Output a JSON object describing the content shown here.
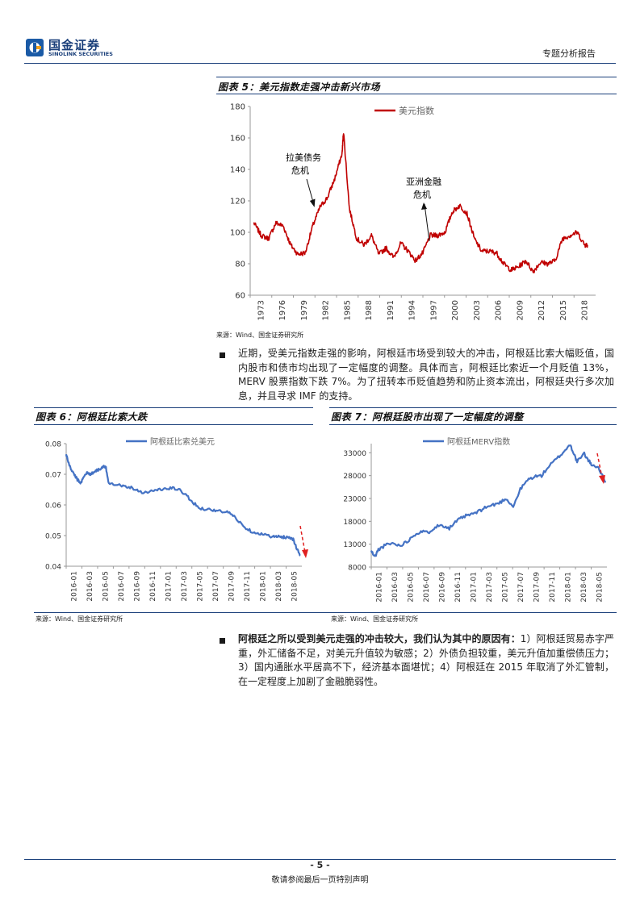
{
  "header": {
    "logo_cn": "国金证券",
    "logo_en": "SINOLINK SECURITIES",
    "report_type": "专题分析报告"
  },
  "fig5": {
    "title": "图表 5：美元指数走强冲击新兴市场",
    "source": "来源：Wind、国金证券研究所",
    "annotations": [
      "拉美债务",
      "危机",
      "亚洲金融",
      "危机"
    ]
  },
  "para1": "近期，受美元指数走强的影响，阿根廷市场受到较大的冲击，阿根廷比索大幅贬值，国内股市和债市均出现了一定幅度的调整。具体而言，阿根廷比索近一个月贬值 13%，MERV 股票指数下跌 7%。为了扭转本币贬值趋势和防止资本流出，阿根廷央行多次加息，并且寻求 IMF 的支持。",
  "fig6": {
    "title": "图表 6：阿根廷比索大跌",
    "source": "来源：Wind、国金证券研究所"
  },
  "fig7": {
    "title": "图表 7：阿根廷股市出现了一定幅度的调整"
  },
  "para2": {
    "bold": "阿根廷之所以受到美元走强的冲击较大，我们认为其中的原因有：",
    "text": "1）阿根廷贸易赤字严重，外汇储备不足，对美元升值较为敏感；2）外债负担较重，美元升值加重偿债压力；3）国内通胀水平居高不下，经济基本面堪忧；4）阿根廷在 2015 年取消了外汇管制，在一定程度上加剧了金融脆弱性。"
  },
  "footer": {
    "page": "- 5 -",
    "disclaimer": "敬请参阅最后一页特别声明"
  },
  "chart_data": [
    {
      "type": "line",
      "series": [
        {
          "name": "美元指数",
          "color": "#c00000",
          "x": [
            1973,
            1974,
            1975,
            1976,
            1977,
            1978,
            1979,
            1980,
            1981,
            1982,
            1983,
            1984,
            1985,
            1985.2,
            1986,
            1987,
            1988,
            1989,
            1990,
            1991,
            1992,
            1993,
            1994,
            1995,
            1996,
            1997,
            1998,
            1999,
            2000,
            2001,
            2002,
            2003,
            2004,
            2005,
            2006,
            2007,
            2008,
            2009,
            2010,
            2011,
            2012,
            2013,
            2014,
            2015,
            2016,
            2017,
            2018,
            2018.4
          ],
          "values": [
            106,
            98,
            96,
            106,
            104,
            92,
            86,
            87,
            104,
            116,
            122,
            134,
            150,
            164,
            115,
            96,
            92,
            98,
            86,
            90,
            84,
            93,
            88,
            82,
            87,
            98,
            98,
            100,
            113,
            117,
            112,
            96,
            88,
            88,
            87,
            80,
            76,
            78,
            82,
            75,
            81,
            80,
            82,
            96,
            98,
            100,
            92,
            92
          ]
        }
      ],
      "xlabel": "",
      "ylabel": "",
      "ylim": [
        60,
        180
      ],
      "yticks": [
        60,
        80,
        100,
        120,
        140,
        160,
        180
      ],
      "xticks": [
        "1973",
        "1976",
        "1979",
        "1982",
        "1985",
        "1988",
        "1991",
        "1994",
        "1997",
        "2000",
        "2003",
        "2006",
        "2009",
        "2012",
        "2015",
        "2018"
      ],
      "grid": false,
      "legend": "top-center"
    },
    {
      "type": "line",
      "series": [
        {
          "name": "阿根廷比索兑美元",
          "color": "#4472c4",
          "x": [
            0,
            0.3,
            0.6,
            1,
            1.5,
            2,
            2.5,
            3,
            3.5,
            4,
            4.5,
            5,
            5.3,
            5.6,
            6,
            7,
            8,
            9,
            10,
            11,
            12,
            13,
            14,
            15,
            16,
            17,
            18,
            19,
            20,
            21,
            22,
            23,
            24,
            25,
            26,
            27,
            28,
            29,
            29.5,
            30,
            30.5,
            31,
            31.5,
            32,
            32.5,
            33
          ],
          "values": [
            0.0765,
            0.074,
            0.072,
            0.0705,
            0.0685,
            0.067,
            0.0695,
            0.0705,
            0.07,
            0.071,
            0.0715,
            0.072,
            0.0725,
            0.072,
            0.0672,
            0.0668,
            0.0662,
            0.0658,
            0.0648,
            0.064,
            0.0645,
            0.065,
            0.0652,
            0.0655,
            0.0648,
            0.063,
            0.0605,
            0.0588,
            0.0586,
            0.0582,
            0.0578,
            0.0575,
            0.0555,
            0.053,
            0.0515,
            0.0508,
            0.0502,
            0.0497,
            0.0496,
            0.0496,
            0.0495,
            0.0495,
            0.0494,
            0.0488,
            0.0455,
            0.0435
          ]
        }
      ],
      "xlabel": "",
      "ylabel": "",
      "ylim": [
        0.04,
        0.08
      ],
      "yticks": [
        0.04,
        0.05,
        0.06,
        0.07,
        0.08
      ],
      "xticks": [
        "2016-01",
        "2016-03",
        "2016-05",
        "2016-07",
        "2016-09",
        "2016-11",
        "2017-01",
        "2017-03",
        "2017-05",
        "2017-07",
        "2017-09",
        "2017-11",
        "2018-01",
        "2018-03",
        "2018-05"
      ],
      "grid": false,
      "legend": "top-center"
    },
    {
      "type": "line",
      "series": [
        {
          "name": "阿根廷MERV指数",
          "color": "#4472c4",
          "x": [
            0,
            0.5,
            1,
            2,
            3,
            4,
            5,
            6,
            7,
            8,
            9,
            10,
            11,
            12,
            13,
            14,
            15,
            16,
            17,
            18,
            19,
            20,
            21,
            22,
            23,
            24,
            25,
            26,
            27,
            28,
            28.5,
            29,
            30,
            30.5,
            31,
            32,
            33
          ],
          "values": [
            11500,
            10200,
            11800,
            12800,
            13200,
            12700,
            13500,
            15000,
            15800,
            15500,
            16800,
            17200,
            16500,
            18000,
            19000,
            19500,
            20000,
            21000,
            21500,
            22000,
            23000,
            21200,
            25000,
            27000,
            27800,
            28000,
            30000,
            31500,
            33000,
            34800,
            33000,
            31000,
            32800,
            31500,
            30500,
            29800,
            26500
          ]
        }
      ],
      "xlabel": "",
      "ylabel": "",
      "ylim": [
        8000,
        35000
      ],
      "yticks": [
        8000,
        13000,
        18000,
        23000,
        28000,
        33000
      ],
      "xticks": [
        "2016-01",
        "2016-03",
        "2016-05",
        "2016-07",
        "2016-09",
        "2016-11",
        "2017-01",
        "2017-03",
        "2017-05",
        "2017-07",
        "2017-09",
        "2017-11",
        "2018-01",
        "2018-03",
        "2018-05"
      ],
      "grid": false,
      "legend": "top-center"
    }
  ]
}
